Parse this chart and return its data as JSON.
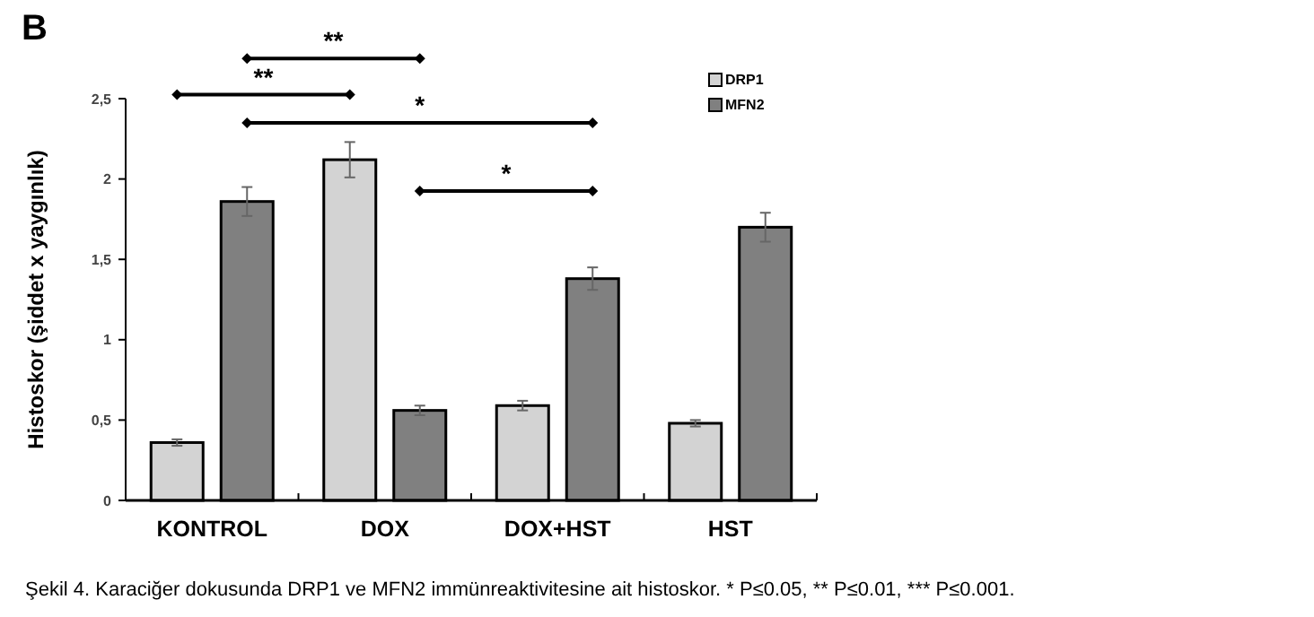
{
  "chart_data": {
    "type": "bar",
    "title": "B",
    "ylabel": "Histoskor (şiddet x yaygınlık)",
    "categories": [
      "KONTROL",
      "DOX",
      "DOX+HST",
      "HST"
    ],
    "series": [
      {
        "name": "DRP1",
        "color": "#d3d3d3",
        "values": [
          0.36,
          2.12,
          0.59,
          0.48
        ],
        "errors": [
          0.02,
          0.11,
          0.03,
          0.02
        ]
      },
      {
        "name": "MFN2",
        "color": "#808080",
        "values": [
          1.86,
          0.56,
          1.38,
          1.7
        ],
        "errors": [
          0.09,
          0.03,
          0.07,
          0.09
        ]
      }
    ],
    "ylim": [
      0,
      2.5
    ],
    "yticks": [
      0,
      {
        "value": 0.5,
        "label": "0,5"
      },
      1,
      {
        "value": 1.5,
        "label": "1,5"
      },
      2,
      {
        "value": 2.5,
        "label": "2,5"
      }
    ],
    "legend": "top right",
    "grid": false,
    "annotations": [
      "**",
      "**",
      "*",
      "*",
      "Şekil 4. Karaciğer dokusunda DRP1 ve MFN2 immünreaktivitesine ait histoskor. * P≤0.05, ** P≤0.01, *** P≤0.001."
    ]
  }
}
